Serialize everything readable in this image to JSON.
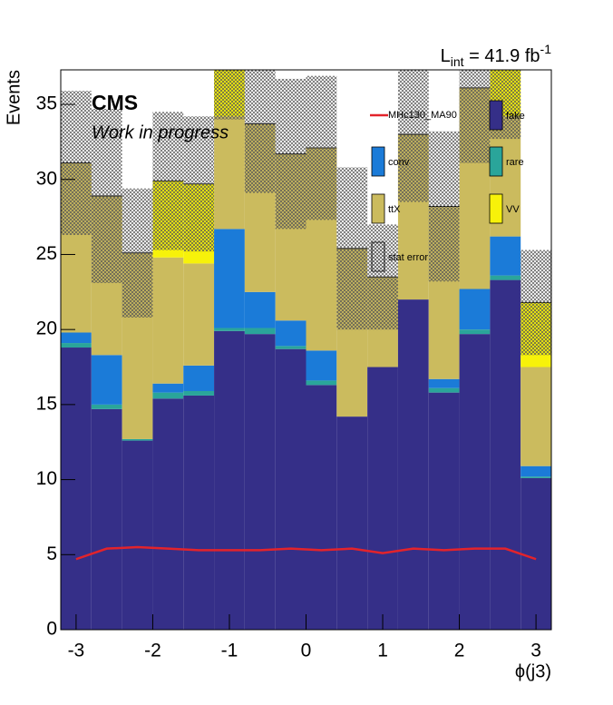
{
  "chart_data": {
    "type": "histogram",
    "cms_label": "CMS",
    "status_label": "Work in progress",
    "lumi": [
      "L",
      "int",
      " = 41.9 fb",
      "-1"
    ],
    "x_label": "ϕ(j3)",
    "y_label": "Events",
    "bins": [
      -3.2,
      -2.8,
      -2.4,
      -2.0,
      -1.6,
      -1.2,
      -0.8,
      -0.4,
      0.0,
      0.4,
      0.8,
      1.2,
      1.6,
      2.0,
      2.4,
      2.8,
      3.2
    ],
    "xlim": [
      -3.2,
      3.2
    ],
    "xticks": [
      -3,
      -2,
      -1,
      0,
      1,
      2,
      3
    ],
    "ylim": [
      0,
      37.3
    ],
    "yticks": [
      0,
      5,
      10,
      15,
      20,
      25,
      30,
      35
    ],
    "series": [
      {
        "name": "fake",
        "color": "#352f88",
        "values": [
          18.8,
          14.7,
          12.6,
          15.4,
          15.6,
          19.9,
          19.7,
          18.7,
          16.3,
          14.2,
          17.5,
          22.0,
          15.8,
          19.7,
          23.3,
          10.1
        ]
      },
      {
        "name": "rare",
        "color": "#2aa59a",
        "values": [
          0.3,
          0.3,
          0.1,
          0.4,
          0.3,
          0.2,
          0.4,
          0.2,
          0.3,
          0,
          0,
          0,
          0.3,
          0.3,
          0.3,
          0.1
        ]
      },
      {
        "name": "conv",
        "color": "#1b7bd8",
        "values": [
          0.7,
          3.3,
          0,
          0.6,
          1.7,
          6.6,
          2.4,
          1.7,
          2.0,
          0,
          0,
          0,
          0.6,
          2.7,
          2.6,
          0.7
        ]
      },
      {
        "name": "ttX",
        "color": "#cbbb5e",
        "values": [
          11.3,
          10.6,
          12.4,
          8.4,
          6.8,
          7.5,
          11.2,
          11.1,
          13.5,
          11.2,
          6.0,
          11.0,
          11.5,
          13.4,
          8.0,
          6.6
        ]
      },
      {
        "name": "VV",
        "color": "#f7f20a",
        "values": [
          0,
          0,
          0,
          5.1,
          5.3,
          4.3,
          0,
          0,
          0,
          0,
          0,
          0,
          0,
          0,
          3.5,
          4.3
        ]
      }
    ],
    "stat_error": {
      "name": "stat error",
      "values": [
        4.8,
        5.8,
        4.3,
        4.6,
        4.5,
        4.5,
        4.6,
        5.0,
        4.8,
        5.4,
        3.5,
        4.5,
        5.0,
        5.0,
        5.0,
        3.5
      ]
    },
    "signal": {
      "name": "MHc130_MA90",
      "color": "#e3232b",
      "values": [
        4.7,
        5.4,
        5.5,
        5.4,
        5.3,
        5.3,
        5.3,
        5.4,
        5.3,
        5.4,
        5.1,
        5.4,
        5.3,
        5.4,
        5.4,
        4.7
      ]
    }
  }
}
